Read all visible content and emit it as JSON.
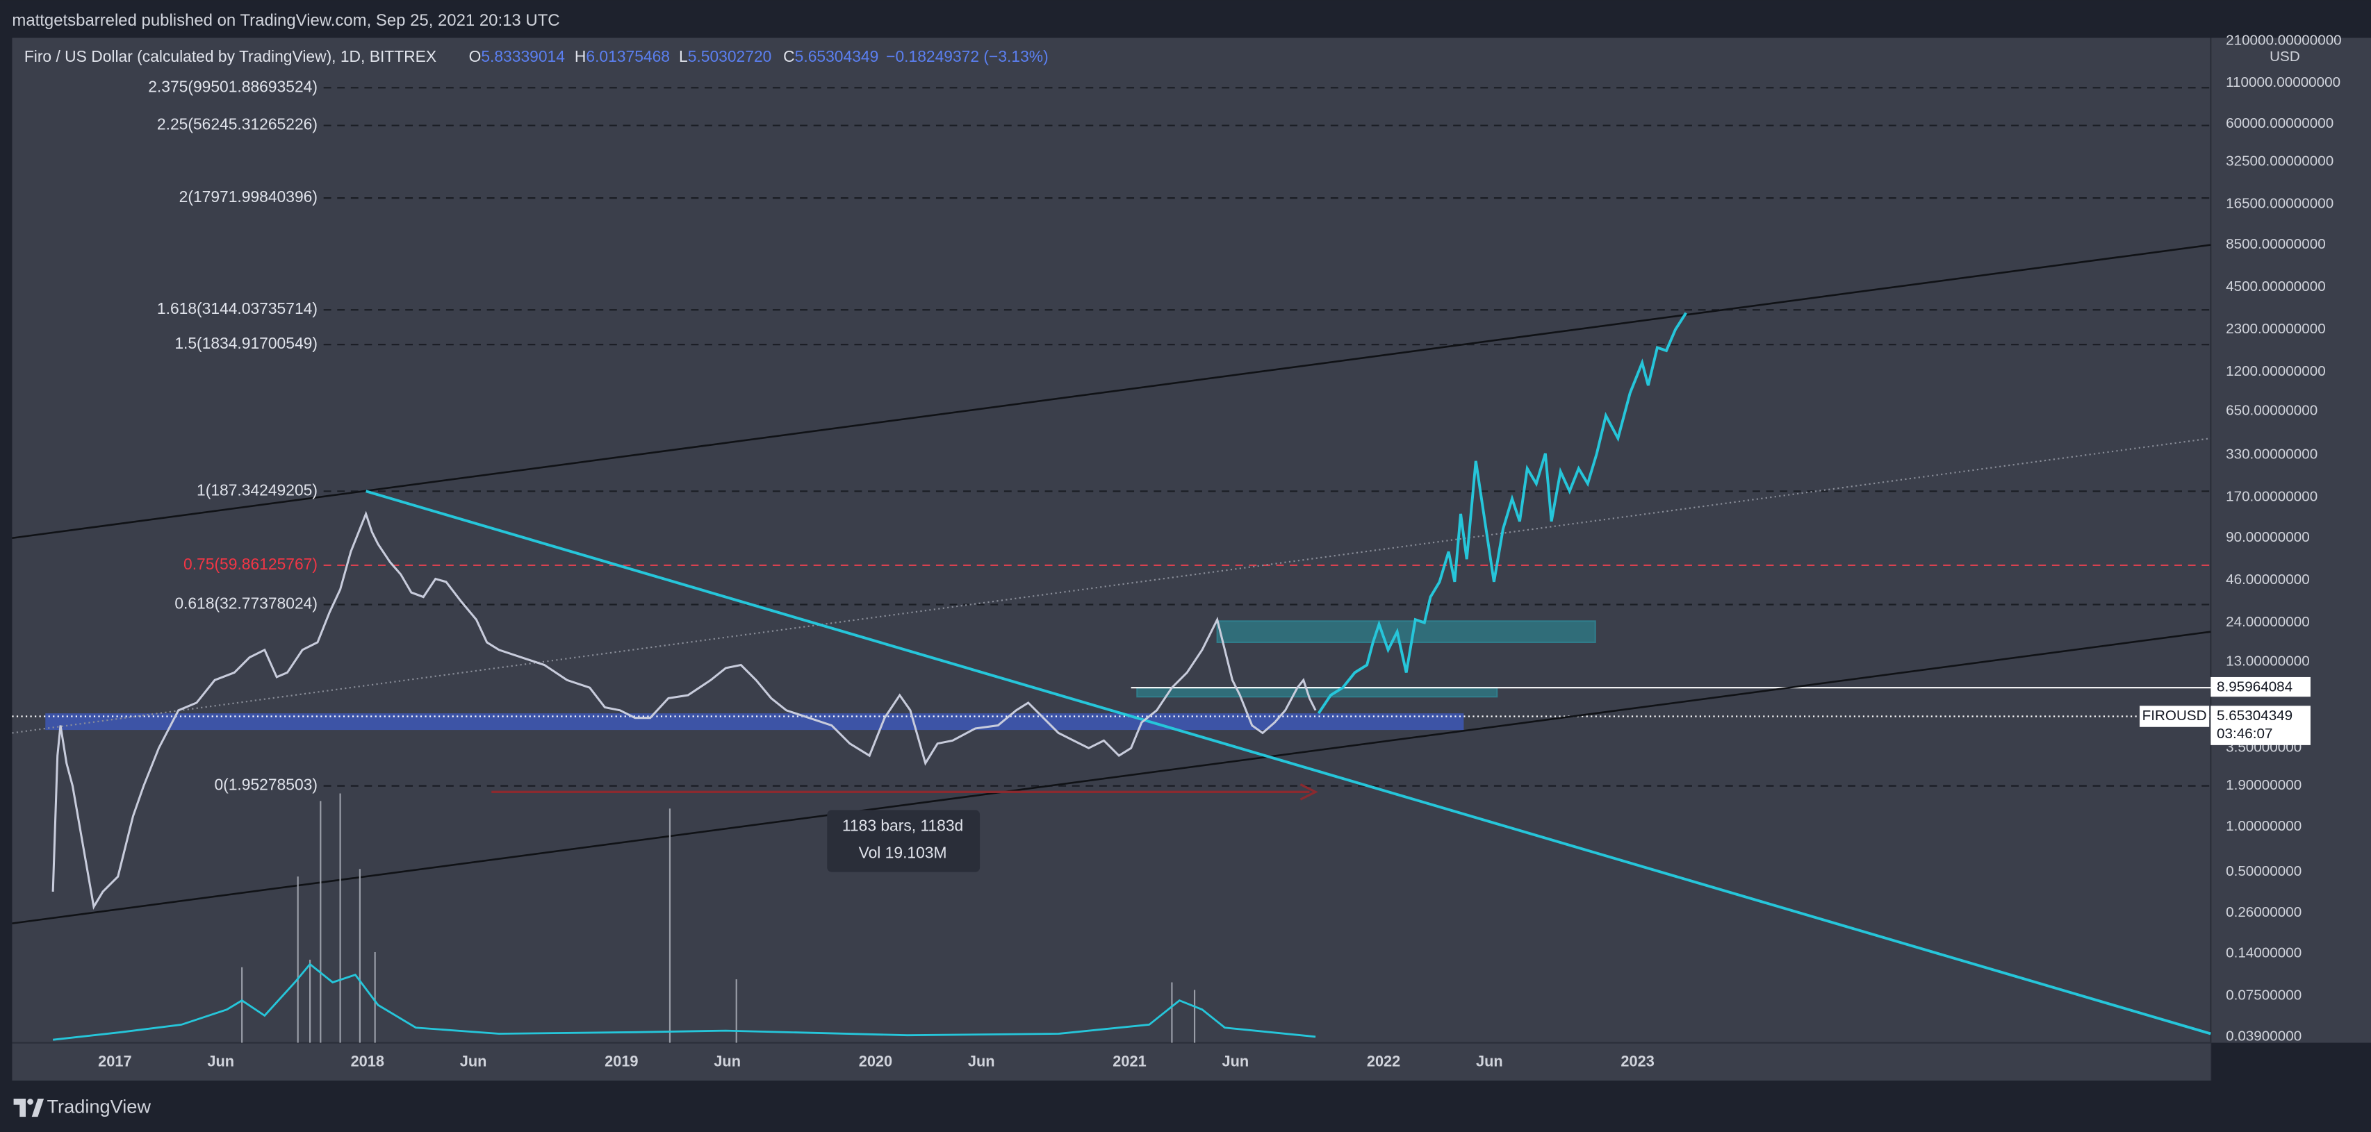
{
  "header": {
    "text": "mattgetsbarreled published on TradingView.com, Sep 25, 2021 20:13 UTC"
  },
  "legend": {
    "symbol": "Firo / US Dollar (calculated by TradingView), 1D, BITTREX",
    "ohlc": [
      {
        "key": "O",
        "value": "5.83339014"
      },
      {
        "key": "H",
        "value": "6.01375468"
      },
      {
        "key": "L",
        "value": "5.50302720"
      },
      {
        "key": "C",
        "value": "5.65304349"
      }
    ],
    "change": "−0.18249372 (−3.13%)"
  },
  "fib_levels": [
    "2.375(99501.88693524)",
    "2.25(56245.31265226)",
    "2(17971.99840396)",
    "1.618(3144.03735714)",
    "1.5(1834.91700549)",
    "1(187.34249205)",
    "0.75(59.86125767)",
    "0.618(32.77378024)",
    "0(1.95278503)"
  ],
  "price_axis": {
    "currency": "USD",
    "labels": [
      "210000.00000000",
      "110000.00000000",
      "60000.00000000",
      "32500.00000000",
      "16500.00000000",
      "8500.00000000",
      "4500.00000000",
      "2300.00000000",
      "1200.00000000",
      "650.00000000",
      "330.00000000",
      "170.00000000",
      "90.00000000",
      "46.00000000",
      "24.00000000",
      "13.00000000",
      "3.50000000",
      "1.90000000",
      "1.00000000",
      "0.50000000",
      "0.26000000",
      "0.14000000",
      "0.07500000",
      "0.03900000"
    ],
    "tags": {
      "line_price": "8.95964084",
      "symbol": "FIROUSD",
      "last_price": "5.65304349",
      "countdown": "03:46:07"
    }
  },
  "time_axis": [
    "2017",
    "Jun",
    "2018",
    "Jun",
    "2019",
    "Jun",
    "2020",
    "Jun",
    "2021",
    "Jun",
    "2022",
    "Jun",
    "2023"
  ],
  "measure_tooltip": {
    "line1": "1183 bars, 1183d",
    "line2": "Vol 19.103M"
  },
  "footer": {
    "brand": "TradingView"
  }
}
